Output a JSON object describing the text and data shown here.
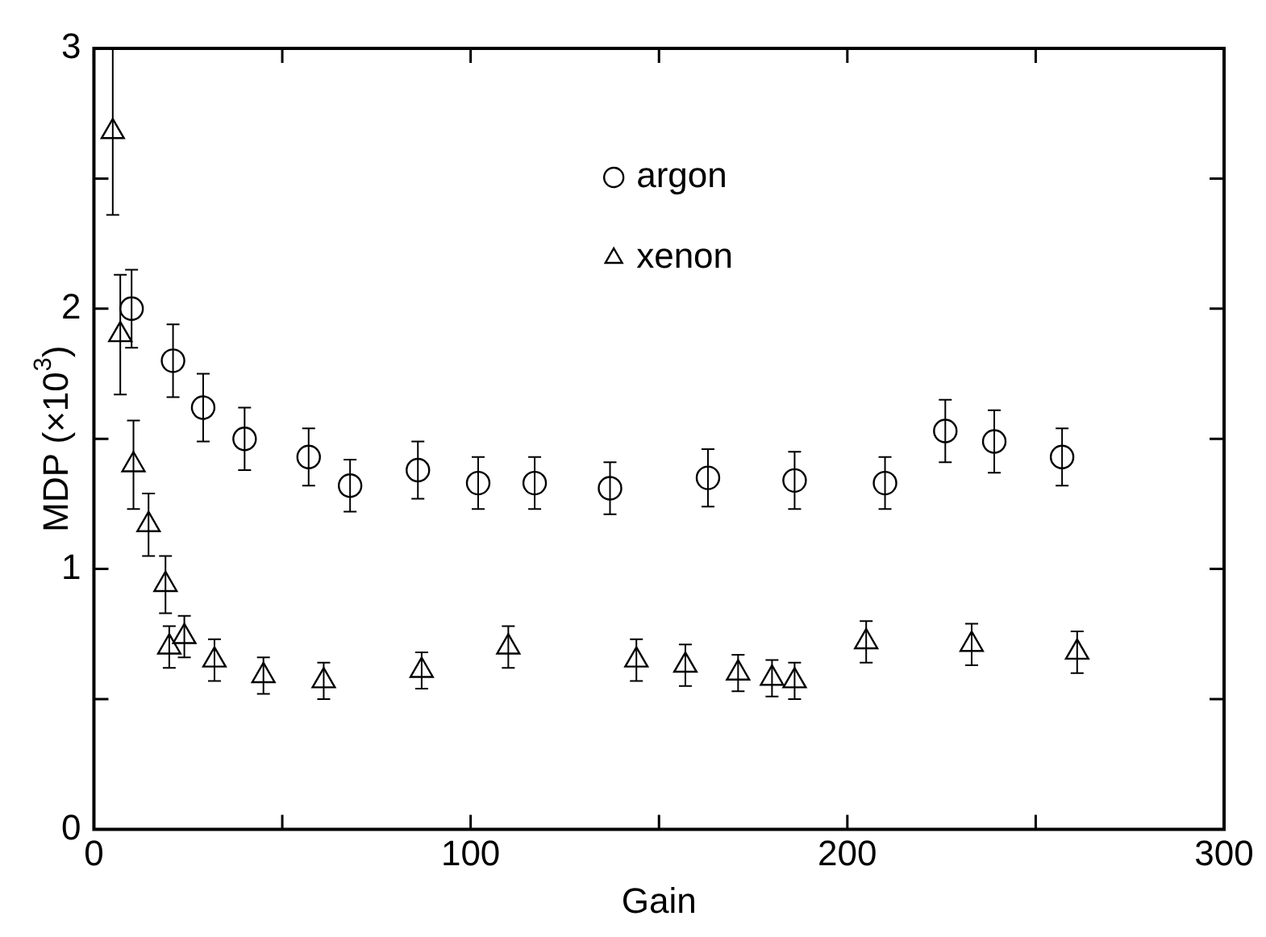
{
  "chart_data": {
    "type": "scatter",
    "xlabel": "Gain",
    "ylabel": "MDP (×10$^{3}$)",
    "xlim": [
      0,
      300
    ],
    "xticks": [
      0,
      {
        "value": 50,
        "label": null
      },
      100,
      {
        "value": 150,
        "label": null
      },
      200,
      {
        "value": 250,
        "label": null
      },
      300
    ],
    "ylim": [
      0,
      3
    ],
    "yticks": [
      0,
      {
        "value": 0.5,
        "label": null
      },
      1,
      {
        "value": 1.5,
        "label": null
      },
      2,
      {
        "value": 2.5,
        "label": null
      },
      3
    ],
    "grid": false,
    "legend": "top",
    "series": [
      {
        "name": "argon",
        "color": "#000000",
        "marker": "circle",
        "x": [
          10,
          21,
          29,
          40,
          57,
          68,
          86,
          102,
          117,
          137,
          163,
          186,
          210,
          226,
          239,
          257
        ],
        "values": [
          2.0,
          1.8,
          1.62,
          1.5,
          1.43,
          1.32,
          1.38,
          1.33,
          1.33,
          1.31,
          1.35,
          1.34,
          1.33,
          1.53,
          1.49,
          1.43
        ],
        "errors": [
          0.15,
          0.14,
          0.13,
          0.12,
          0.11,
          0.1,
          0.11,
          0.1,
          0.1,
          0.1,
          0.11,
          0.11,
          0.1,
          0.12,
          0.12,
          0.11
        ]
      },
      {
        "name": "xenon",
        "color": "#000000",
        "marker": "triangle",
        "x": [
          5,
          7,
          10.5,
          14.5,
          19,
          20,
          24,
          32,
          45,
          61,
          87,
          110,
          144,
          157,
          171,
          180,
          186,
          205,
          233,
          261
        ],
        "values": [
          2.68,
          1.9,
          1.4,
          1.17,
          0.94,
          0.7,
          0.74,
          0.65,
          0.59,
          0.57,
          0.61,
          0.7,
          0.65,
          0.63,
          0.6,
          0.58,
          0.57,
          0.72,
          0.71,
          0.68
        ],
        "errors": [
          0.32,
          0.23,
          0.17,
          0.12,
          0.11,
          0.08,
          0.08,
          0.08,
          0.07,
          0.07,
          0.07,
          0.08,
          0.08,
          0.08,
          0.07,
          0.07,
          0.07,
          0.08,
          0.08,
          0.08
        ]
      }
    ]
  }
}
